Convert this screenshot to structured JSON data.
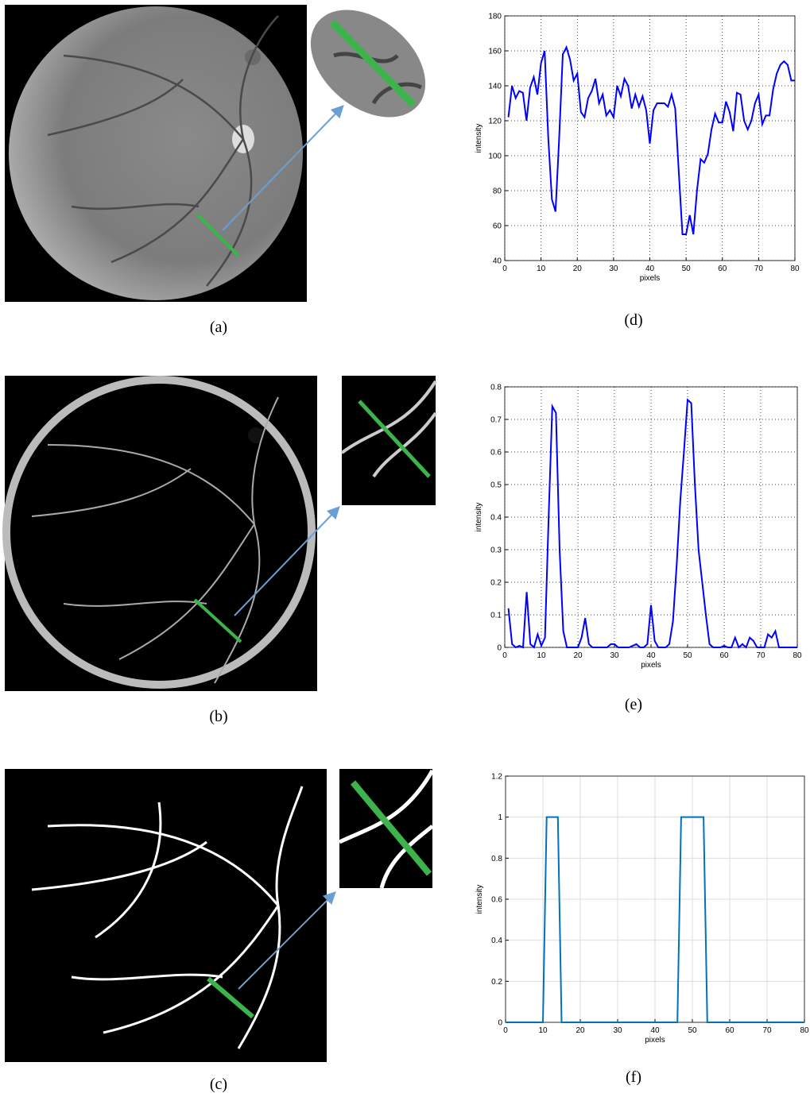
{
  "captions": [
    "(a)",
    "(b)",
    "(c)",
    "(d)",
    "(e)",
    "(f)"
  ],
  "chart_data": [
    {
      "type": "line",
      "xlabel": "pixels",
      "ylabel": "intensity",
      "grid": "dotted",
      "xlim": [
        0,
        80
      ],
      "xticks": [
        0,
        10,
        20,
        30,
        40,
        50,
        60,
        70,
        80
      ],
      "ylim": [
        40,
        180
      ],
      "yticks": [
        40,
        60,
        80,
        100,
        120,
        140,
        160,
        180
      ],
      "x": [
        1,
        2,
        3,
        4,
        5,
        6,
        7,
        8,
        9,
        10,
        11,
        12,
        13,
        14,
        15,
        16,
        17,
        18,
        19,
        20,
        21,
        22,
        23,
        24,
        25,
        26,
        27,
        28,
        29,
        30,
        31,
        32,
        33,
        34,
        35,
        36,
        37,
        38,
        39,
        40,
        41,
        42,
        43,
        44,
        45,
        46,
        47,
        48,
        49,
        50,
        51,
        52,
        53,
        54,
        55,
        56,
        57,
        58,
        59,
        60,
        61,
        62,
        63,
        64,
        65,
        66,
        67,
        68,
        69,
        70,
        71,
        72,
        73,
        74,
        75,
        76,
        77,
        78,
        79,
        80
      ],
      "series": [
        {
          "color": "#0000ff",
          "values": [
            122,
            140,
            133,
            137,
            136,
            120,
            139,
            145,
            135,
            153,
            160,
            110,
            75,
            68,
            110,
            158,
            162,
            155,
            143,
            147,
            125,
            122,
            133,
            137,
            144,
            130,
            135,
            123,
            126,
            122,
            140,
            134,
            144,
            140,
            127,
            135,
            128,
            134,
            126,
            107,
            126,
            130,
            130,
            130,
            128,
            135,
            127,
            90,
            55,
            55,
            66,
            55,
            80,
            98,
            96,
            101,
            115,
            124,
            119,
            119,
            131,
            125,
            114,
            136,
            135,
            120,
            115,
            120,
            130,
            135,
            118,
            123,
            123,
            138,
            147,
            152,
            154,
            152,
            143,
            143
          ]
        }
      ]
    },
    {
      "type": "line",
      "xlabel": "pixels",
      "ylabel": "intensity",
      "grid": "dotted",
      "xlim": [
        0,
        80
      ],
      "xticks": [
        0,
        10,
        20,
        30,
        40,
        50,
        60,
        70,
        80
      ],
      "ylim": [
        0,
        0.8
      ],
      "yticks": [
        0,
        0.1,
        0.2,
        0.3,
        0.4,
        0.5,
        0.6,
        0.7,
        0.8
      ],
      "x": [
        1,
        2,
        3,
        4,
        5,
        6,
        7,
        8,
        9,
        10,
        11,
        12,
        13,
        14,
        15,
        16,
        17,
        18,
        19,
        20,
        21,
        22,
        23,
        24,
        25,
        26,
        27,
        28,
        29,
        30,
        31,
        32,
        33,
        34,
        35,
        36,
        37,
        38,
        39,
        40,
        41,
        42,
        43,
        44,
        45,
        46,
        47,
        48,
        49,
        50,
        51,
        52,
        53,
        54,
        55,
        56,
        57,
        58,
        59,
        60,
        61,
        62,
        63,
        64,
        65,
        66,
        67,
        68,
        69,
        70,
        71,
        72,
        73,
        74,
        75,
        76,
        77,
        78,
        79,
        80
      ],
      "series": [
        {
          "color": "#0000ff",
          "values": [
            0.12,
            0.01,
            0,
            0.005,
            0,
            0.17,
            0.01,
            0,
            0.04,
            0.005,
            0.03,
            0.4,
            0.74,
            0.72,
            0.3,
            0.05,
            0,
            0,
            0,
            0,
            0.03,
            0.09,
            0.01,
            0,
            0,
            0,
            0,
            0,
            0.01,
            0.01,
            0,
            0,
            0,
            0,
            0.005,
            0.01,
            0,
            0,
            0.01,
            0.13,
            0.02,
            0,
            0,
            0,
            0.01,
            0.08,
            0.25,
            0.45,
            0.6,
            0.76,
            0.75,
            0.5,
            0.3,
            0.2,
            0.1,
            0.01,
            0,
            0,
            0,
            0.005,
            0,
            0,
            0.03,
            0,
            0.01,
            0,
            0.03,
            0.02,
            0,
            0,
            0,
            0.04,
            0.03,
            0.05,
            0,
            0,
            0,
            0,
            0,
            0
          ]
        }
      ]
    },
    {
      "type": "line",
      "xlabel": "pixels",
      "ylabel": "intensity",
      "grid": "solid",
      "xlim": [
        0,
        80
      ],
      "xticks": [
        0,
        10,
        20,
        30,
        40,
        50,
        60,
        70,
        80
      ],
      "ylim": [
        0,
        1.2
      ],
      "yticks": [
        0,
        0.2,
        0.4,
        0.6,
        0.8,
        1,
        1.2
      ],
      "x": [
        0,
        10,
        11,
        14,
        15,
        46,
        47,
        53,
        54,
        80
      ],
      "series": [
        {
          "color": "#0072bd",
          "values": [
            0,
            0,
            1,
            1,
            0,
            0,
            1,
            1,
            0,
            0
          ]
        }
      ]
    }
  ]
}
